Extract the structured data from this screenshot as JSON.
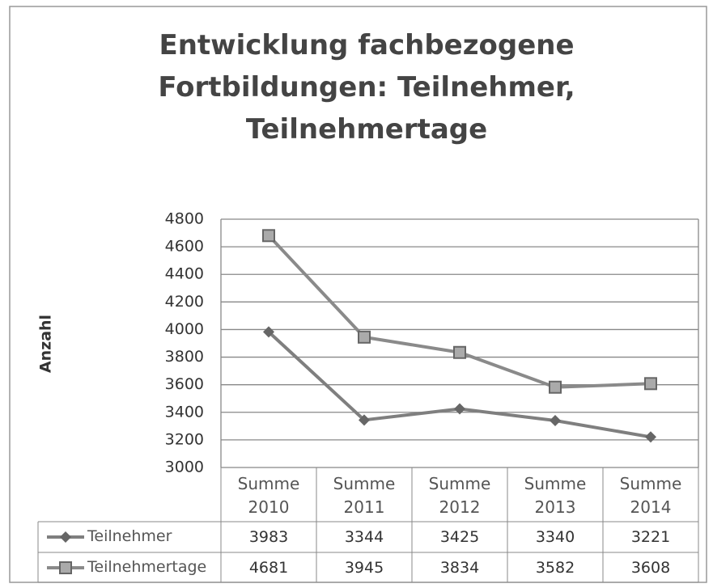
{
  "chart_data": {
    "type": "line",
    "title": "Entwicklung fachbezogene Fortbildungen: Teilnehmer, Teilnehmertage",
    "y_label": "Anzahl",
    "categories": [
      "Summe 2010",
      "Summe 2011",
      "Summe 2012",
      "Summe 2013",
      "Summe 2014"
    ],
    "series": [
      {
        "name": "Teilnehmer",
        "color": "#7f7f7f",
        "marker": "diamond",
        "values": [
          3983,
          3344,
          3425,
          3340,
          3221
        ]
      },
      {
        "name": "Teilnehmertage",
        "color": "#8a8a8a",
        "marker": "square",
        "values": [
          4681,
          3945,
          3834,
          3582,
          3608
        ]
      }
    ],
    "ylim": [
      3000,
      4800
    ],
    "yticks": [
      3000,
      3200,
      3400,
      3600,
      3800,
      4000,
      4200,
      4400,
      4600,
      4800
    ],
    "grid": true,
    "data_table": true
  }
}
